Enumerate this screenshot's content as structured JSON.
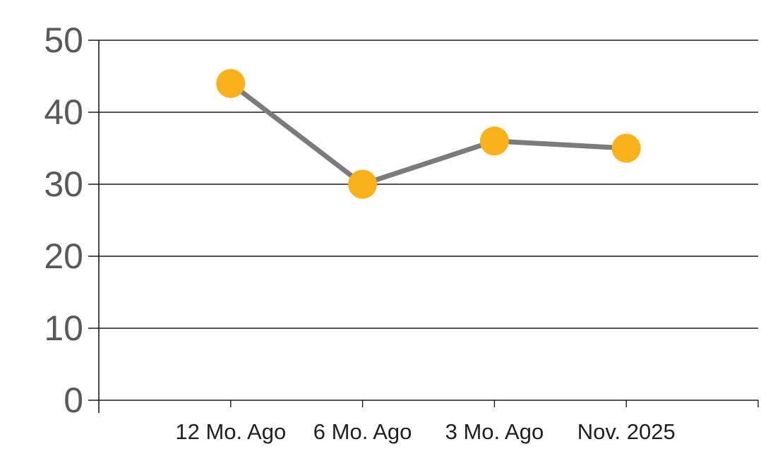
{
  "chart_data": {
    "type": "line",
    "title": "",
    "xlabel": "",
    "ylabel": "",
    "categories": [
      "12 Mo. Ago",
      "6 Mo. Ago",
      "3 Mo. Ago",
      "Nov. 2025"
    ],
    "values": [
      44,
      30,
      36,
      35
    ],
    "ylim": [
      0,
      50
    ],
    "yticks": [
      0,
      10,
      20,
      30,
      40,
      50
    ],
    "grid": "horizontal",
    "legend": "none",
    "marker": "circle",
    "colors": {
      "marker_fill": "#F9B11C",
      "line": "#7B7B7B",
      "grid_axis": "#1A1A1A",
      "y_tick_labels": "#595959",
      "x_tick_labels": "#1F1F1F",
      "background": "#FFFFFF"
    }
  }
}
